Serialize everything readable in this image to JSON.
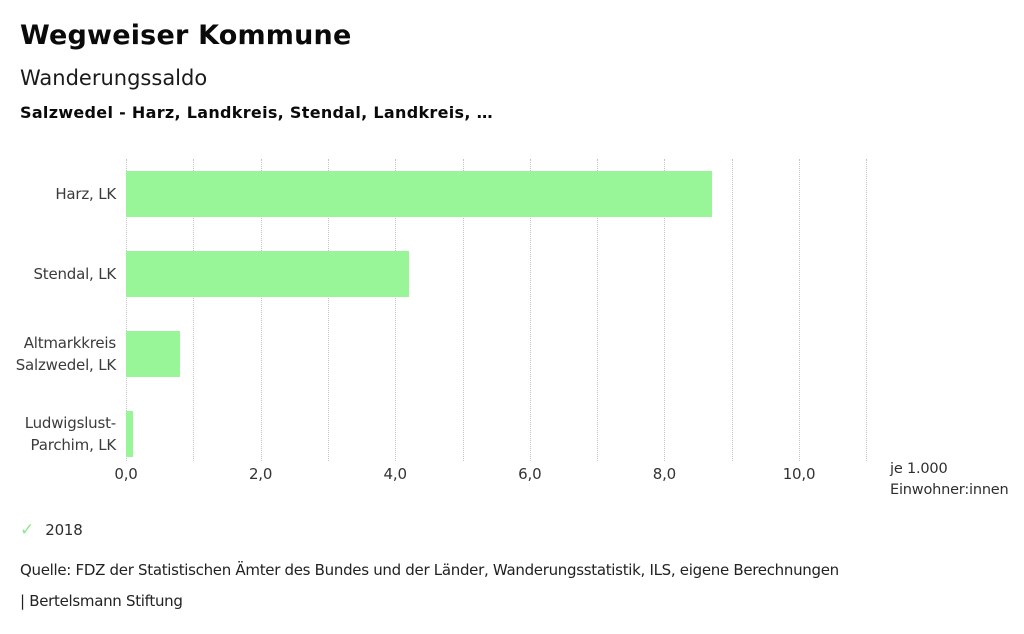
{
  "header": {
    "app_title": "Wegweiser Kommune",
    "chart_title": "Wanderungssaldo",
    "chart_subtitle": "Salzwedel - Harz, Landkreis, Stendal, Landkreis, …"
  },
  "chart_data": {
    "type": "bar",
    "orientation": "horizontal",
    "title": "Wanderungssaldo",
    "categories": [
      "Harz, LK",
      "Stendal, LK",
      "Altmarkkreis Salzwedel, LK",
      "Ludwigslust-Parchim, LK"
    ],
    "category_label_lines": [
      [
        "Harz, LK"
      ],
      [
        "Stendal, LK"
      ],
      [
        "Altmarkkreis",
        "Salzwedel, LK"
      ],
      [
        "Ludwigslust-",
        "Parchim, LK"
      ]
    ],
    "series": [
      {
        "name": "2018",
        "values": [
          8.7,
          4.2,
          0.8,
          0.1
        ]
      }
    ],
    "xlabel": "je 1.000 Einwohner:innen",
    "axis_unit_lines": [
      "je 1.000",
      "Einwohner:innen"
    ],
    "xlim": [
      0,
      11
    ],
    "grid_interval": 1.0,
    "x_tick_values": [
      0,
      2,
      4,
      6,
      8,
      10
    ],
    "x_tick_labels": [
      "0,0",
      "2,0",
      "4,0",
      "6,0",
      "8,0",
      "10,0"
    ],
    "grid": true,
    "legend_position": "bottom-left",
    "bar_color": "#98f598",
    "gridline_color": "#c3c3c3"
  },
  "legend": {
    "check_icon": "check-icon",
    "check_icon_color": "#8ce98a",
    "year": "2018"
  },
  "footer": {
    "source": "Quelle: FDZ der Statistischen Ämter des Bundes und der Länder, Wanderungsstatistik, ILS, eigene Berechnungen",
    "brand": "| Bertelsmann Stiftung"
  }
}
